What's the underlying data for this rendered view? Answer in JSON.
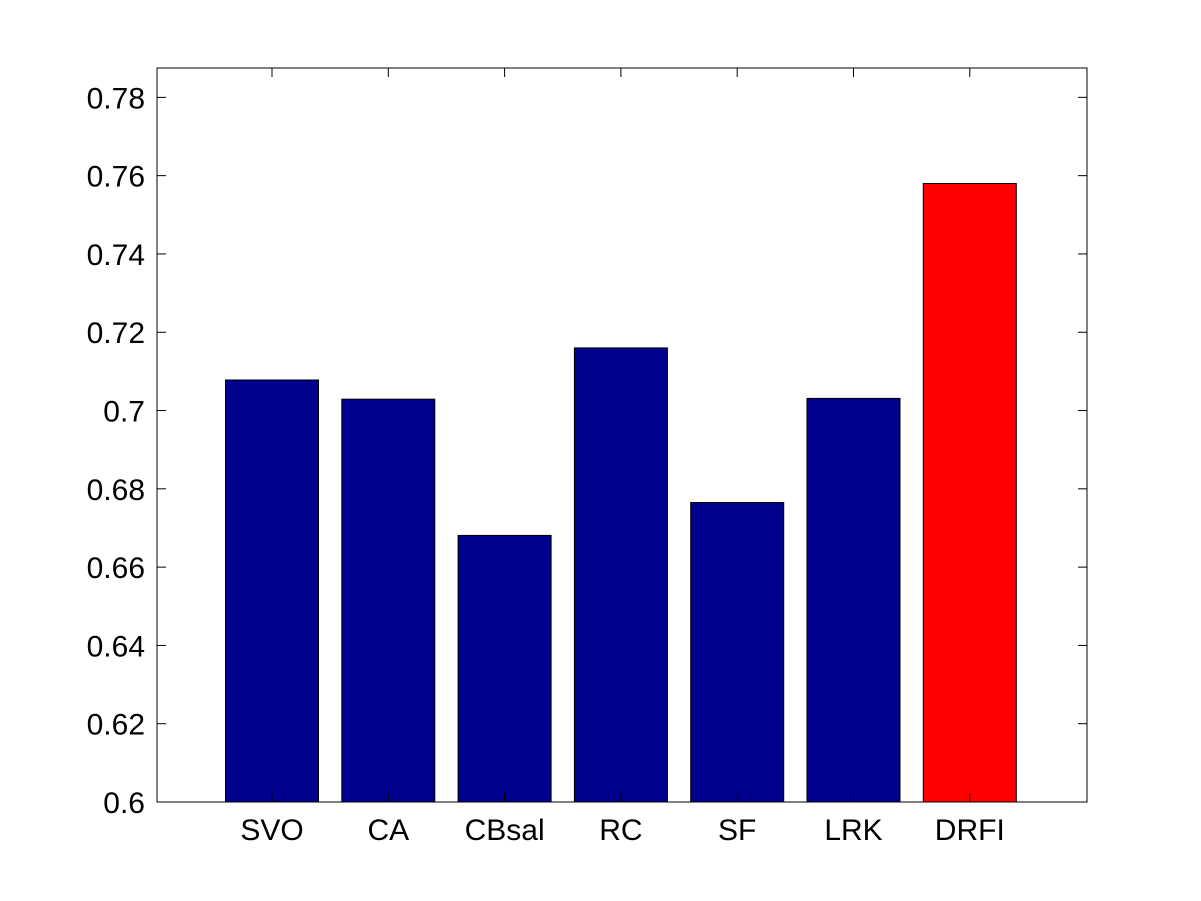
{
  "chart_data": {
    "type": "bar",
    "categories": [
      "SVO",
      "CA",
      "CBsal",
      "RC",
      "SF",
      "LRK",
      "DRFI"
    ],
    "values": [
      0.7078,
      0.7029,
      0.6681,
      0.716,
      0.6765,
      0.7031,
      0.758
    ],
    "ylim": [
      0.6,
      0.7875
    ],
    "yticks": [
      0.6,
      0.62,
      0.64,
      0.66,
      0.68,
      0.7,
      0.72,
      0.74,
      0.76,
      0.78
    ],
    "ytick_labels": [
      "0.6",
      "0.62",
      "0.64",
      "0.66",
      "0.68",
      "0.7",
      "0.72",
      "0.74",
      "0.76",
      "0.78"
    ],
    "colors": {
      "default_bar": "#00008f",
      "highlight_bar": "#ff0000",
      "highlight_category": "DRFI",
      "axis": "#000000",
      "background": "#ffffff"
    },
    "grid": false,
    "box": true
  }
}
